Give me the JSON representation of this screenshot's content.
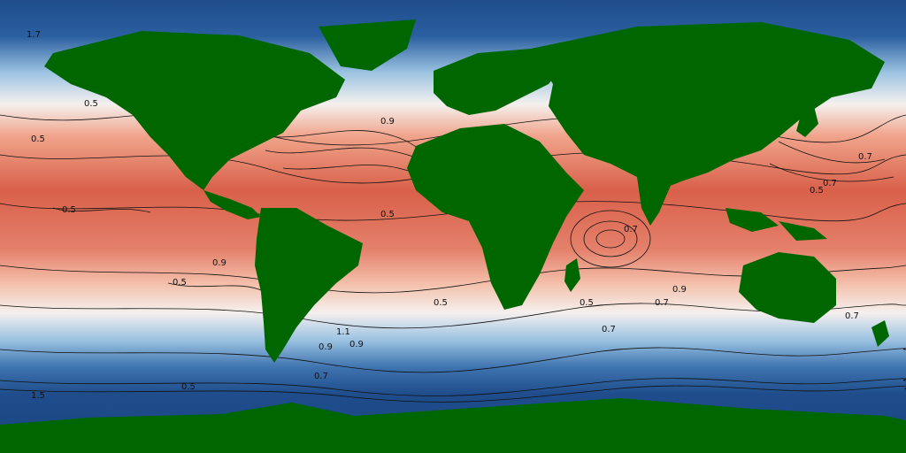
{
  "colors": {
    "ocean_warm": "#d9604a",
    "ocean_mid": "#f4b59e",
    "ocean_neutral": "#f5f0ee",
    "ocean_cool": "#9cc3e2",
    "ocean_cold": "#1f4d8c",
    "land": "#006600",
    "contour": "#111111"
  },
  "contour_labels": [
    "0.5",
    "0.5",
    "0.5",
    "0.5",
    "0.9",
    "0.9",
    "0.9",
    "0.7",
    "0.7",
    "0.7",
    "1.1",
    "0.9",
    "0.5",
    "0.5",
    "0.7",
    "0.7",
    "0.5",
    "0.5",
    "1.5",
    "1.7",
    "0.5",
    "0.7",
    "0.9",
    "0.7"
  ],
  "icons": [
    "land-mass"
  ]
}
